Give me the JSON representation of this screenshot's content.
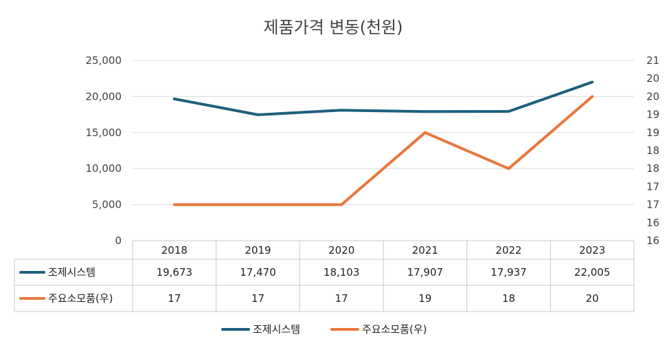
{
  "chart_data": {
    "type": "line",
    "title": "제품가격 변동(천원)",
    "categories": [
      "2018",
      "2019",
      "2020",
      "2021",
      "2022",
      "2023"
    ],
    "series": [
      {
        "name": "조제시스템",
        "axis": "left",
        "color": "#1f5f7f",
        "values": [
          19673,
          17470,
          18103,
          17907,
          17937,
          22005
        ],
        "labels": [
          "19,673",
          "17,470",
          "18,103",
          "17,907",
          "17,937",
          "22,005"
        ]
      },
      {
        "name": "주요소모품(우)",
        "axis": "right",
        "color": "#e8773a",
        "values": [
          17,
          17,
          17,
          19,
          18,
          20
        ],
        "labels": [
          "17",
          "17",
          "17",
          "19",
          "18",
          "20"
        ]
      }
    ],
    "ylim_left": [
      0,
      25000
    ],
    "ylim_right": [
      16,
      21
    ],
    "yticks_left": [
      "0",
      "5,000",
      "10,000",
      "15,000",
      "20,000",
      "25,000"
    ],
    "yticks_right": [
      "16",
      "16",
      "17",
      "17",
      "18",
      "18",
      "19",
      "19",
      "20",
      "20",
      "21"
    ],
    "grid": true,
    "legend_position": "bottom",
    "data_table": true
  }
}
